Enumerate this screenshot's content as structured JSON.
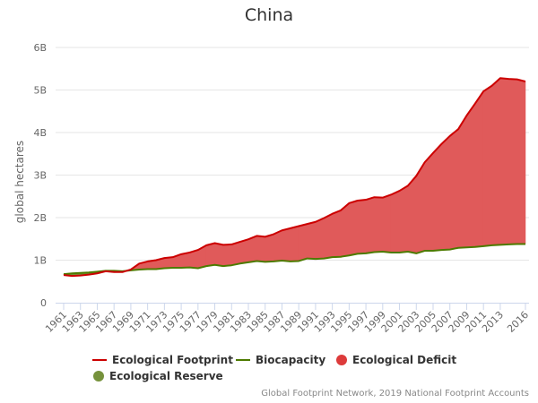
{
  "chart_data": {
    "type": "area",
    "title": "China",
    "ylabel": "global hectares",
    "xlabel": "",
    "ylim": [
      0,
      6
    ],
    "y_ticks": [
      "0",
      "1B",
      "2B",
      "3B",
      "4B",
      "5B",
      "6B"
    ],
    "x_tick_labels": [
      "1961",
      "1963",
      "1965",
      "1967",
      "1969",
      "1971",
      "1973",
      "1975",
      "1977",
      "1979",
      "1981",
      "1983",
      "1985",
      "1987",
      "1989",
      "1991",
      "1993",
      "1995",
      "1997",
      "1999",
      "2001",
      "2003",
      "2005",
      "2007",
      "2009",
      "2011",
      "2013",
      "2016"
    ],
    "x": [
      1961,
      1962,
      1963,
      1964,
      1965,
      1966,
      1967,
      1968,
      1969,
      1970,
      1971,
      1972,
      1973,
      1974,
      1975,
      1976,
      1977,
      1978,
      1979,
      1980,
      1981,
      1982,
      1983,
      1984,
      1985,
      1986,
      1987,
      1988,
      1989,
      1990,
      1991,
      1992,
      1993,
      1994,
      1995,
      1996,
      1997,
      1998,
      1999,
      2000,
      2001,
      2002,
      2003,
      2004,
      2005,
      2006,
      2007,
      2008,
      2009,
      2010,
      2011,
      2012,
      2013,
      2014,
      2015,
      2016
    ],
    "grid": true,
    "legend_placement": "bottom",
    "series": [
      {
        "name": "Ecological Footprint",
        "color": "#cc0000",
        "unit": "billion global hectares",
        "values": [
          0.65,
          0.63,
          0.64,
          0.66,
          0.69,
          0.74,
          0.72,
          0.72,
          0.78,
          0.92,
          0.97,
          1.0,
          1.05,
          1.07,
          1.14,
          1.18,
          1.24,
          1.35,
          1.4,
          1.36,
          1.37,
          1.43,
          1.49,
          1.57,
          1.55,
          1.61,
          1.7,
          1.75,
          1.8,
          1.85,
          1.9,
          1.99,
          2.09,
          2.17,
          2.34,
          2.4,
          2.42,
          2.48,
          2.47,
          2.54,
          2.63,
          2.75,
          2.98,
          3.3,
          3.52,
          3.73,
          3.92,
          4.08,
          4.4,
          4.68,
          4.97,
          5.1,
          5.28,
          5.26,
          5.25,
          5.2
        ]
      },
      {
        "name": "Biocapacity",
        "color": "#4d7a00",
        "unit": "billion global hectares",
        "values": [
          0.67,
          0.69,
          0.7,
          0.71,
          0.73,
          0.75,
          0.75,
          0.74,
          0.76,
          0.78,
          0.79,
          0.79,
          0.81,
          0.82,
          0.82,
          0.83,
          0.81,
          0.86,
          0.89,
          0.86,
          0.88,
          0.92,
          0.95,
          0.98,
          0.96,
          0.97,
          0.99,
          0.97,
          0.98,
          1.04,
          1.03,
          1.04,
          1.07,
          1.08,
          1.11,
          1.15,
          1.16,
          1.19,
          1.2,
          1.18,
          1.18,
          1.2,
          1.16,
          1.22,
          1.22,
          1.24,
          1.25,
          1.29,
          1.3,
          1.31,
          1.33,
          1.35,
          1.36,
          1.37,
          1.38,
          1.38
        ]
      }
    ],
    "areas": [
      {
        "name": "Ecological Deficit",
        "color": "#e05a5a"
      },
      {
        "name": "Ecological Reserve",
        "color": "#76923c"
      }
    ],
    "credit": "Global Footprint Network, 2019 National Footprint Accounts"
  }
}
